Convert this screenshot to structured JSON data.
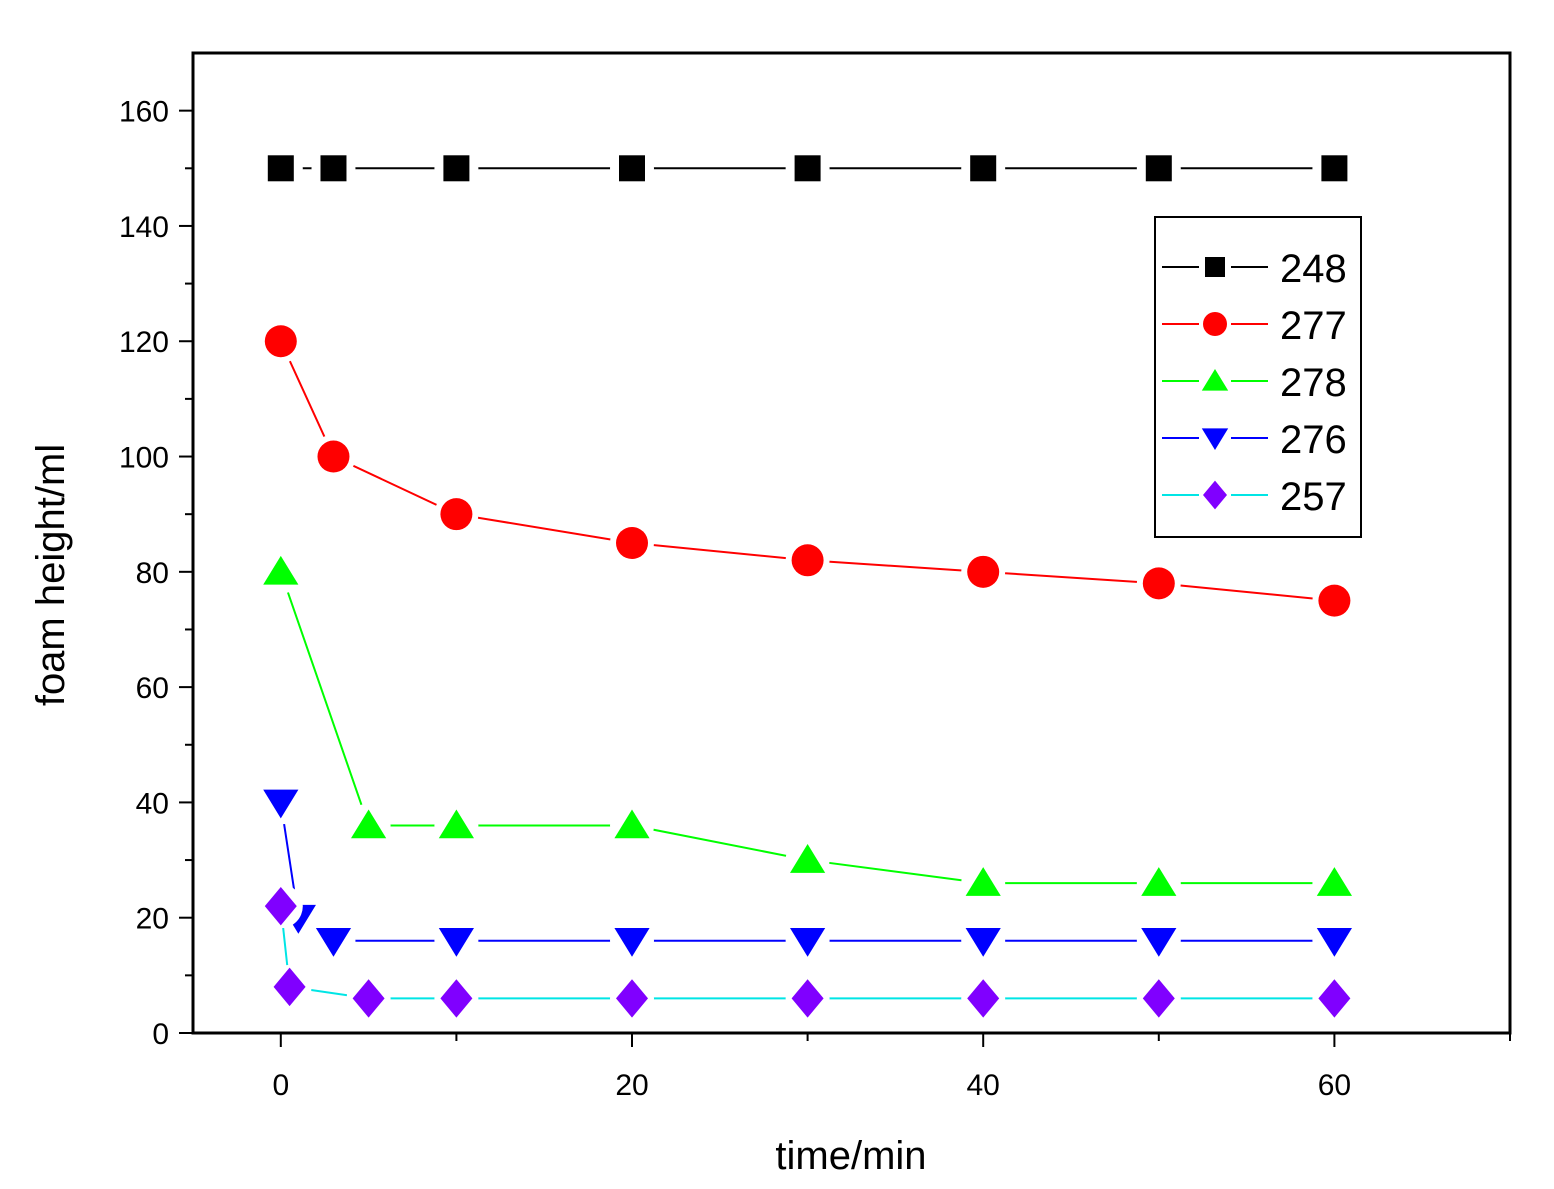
{
  "chart_data": {
    "type": "line",
    "title": "",
    "xlabel": "time/min",
    "ylabel": "foam height/ml",
    "xlim": [
      -5,
      70
    ],
    "ylim": [
      0,
      170
    ],
    "x_ticks": [
      0,
      20,
      40,
      60
    ],
    "y_ticks": [
      0,
      20,
      40,
      60,
      80,
      100,
      120,
      140,
      160
    ],
    "legend_position": "top-right",
    "grid": false,
    "series": [
      {
        "name": "248",
        "color": "#000000",
        "marker": "square",
        "points": [
          [
            0,
            150
          ],
          [
            3,
            150
          ],
          [
            10,
            150
          ],
          [
            20,
            150
          ],
          [
            30,
            150
          ],
          [
            40,
            150
          ],
          [
            50,
            150
          ],
          [
            60,
            150
          ]
        ]
      },
      {
        "name": "277",
        "color": "#ff0000",
        "marker": "circle",
        "points": [
          [
            0,
            120
          ],
          [
            3,
            100
          ],
          [
            10,
            90
          ],
          [
            20,
            85
          ],
          [
            30,
            82
          ],
          [
            40,
            80
          ],
          [
            50,
            78
          ],
          [
            60,
            75
          ]
        ]
      },
      {
        "name": "278",
        "color": "#00ff00",
        "marker": "triangle-up",
        "points": [
          [
            0,
            80
          ],
          [
            5,
            36
          ],
          [
            10,
            36
          ],
          [
            20,
            36
          ],
          [
            30,
            30
          ],
          [
            40,
            26
          ],
          [
            50,
            26
          ],
          [
            60,
            26
          ]
        ]
      },
      {
        "name": "276",
        "color": "#0000ff",
        "marker": "triangle-down",
        "points": [
          [
            0,
            40
          ],
          [
            1,
            20
          ],
          [
            3,
            16
          ],
          [
            10,
            16
          ],
          [
            20,
            16
          ],
          [
            30,
            16
          ],
          [
            40,
            16
          ],
          [
            50,
            16
          ],
          [
            60,
            16
          ]
        ]
      },
      {
        "name": "257",
        "color": "#00e5e5",
        "marker_color": "#8000ff",
        "marker": "diamond",
        "points": [
          [
            0,
            22
          ],
          [
            0.5,
            8
          ],
          [
            5,
            6
          ],
          [
            10,
            6
          ],
          [
            20,
            6
          ],
          [
            30,
            6
          ],
          [
            40,
            6
          ],
          [
            50,
            6
          ],
          [
            60,
            6
          ]
        ]
      }
    ]
  }
}
